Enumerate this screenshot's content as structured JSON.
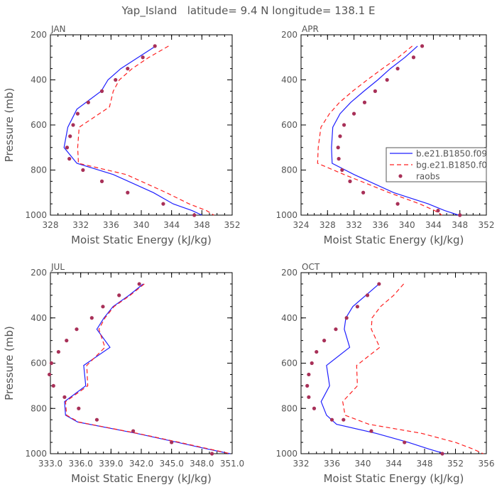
{
  "figure_title": "Yap_Island   latitude= 9.4 N longitude= 138.1 E",
  "legend": {
    "placement": "right, inside APR panel",
    "entries": [
      {
        "label": "b.e21.B1850.f09",
        "color": "#1f1fff",
        "style": "solid"
      },
      {
        "label": "bg.e21.B1850.f0",
        "color": "#ff2020",
        "style": "dashed"
      },
      {
        "label": "raobs",
        "color": "#a83058",
        "style": "dot"
      }
    ]
  },
  "chart_data": [
    {
      "type": "line",
      "title": "JAN",
      "xlabel": "Moist Static Energy (kJ/kg)",
      "ylabel": "Pressure (mb)",
      "xlim": [
        328,
        352
      ],
      "ylim": [
        1000,
        200
      ],
      "xticks": [
        328,
        332,
        336,
        340,
        344,
        348,
        352
      ],
      "xtick_labels": [
        "328",
        "332",
        "336",
        "340",
        "344",
        "348",
        "352"
      ],
      "yticks": [
        200,
        400,
        600,
        800,
        1000
      ],
      "ytick_labels": [
        "200",
        "400",
        "600",
        "800",
        "1000"
      ],
      "series": [
        {
          "name": "b.e21.B1850.f09",
          "color": "#1f1fff",
          "dash": "",
          "x": [
            341.9,
            339.6,
            337.3,
            335.6,
            334.7,
            331.5,
            330.3,
            329.8,
            331.5,
            336.3,
            341.6,
            344.2,
            346.7,
            348.0
          ],
          "y": [
            250,
            300,
            350,
            400,
            450,
            530,
            610,
            700,
            770,
            820,
            900,
            950,
            980,
            1000
          ]
        },
        {
          "name": "bg.e21.B1850.f0",
          "color": "#ff2020",
          "dash": "6,4",
          "x": [
            343.6,
            341.0,
            338.8,
            337.1,
            336.3,
            335.8,
            331.8,
            331.6,
            331.7,
            338.0,
            343.3,
            346.3,
            348.6,
            349.6
          ],
          "y": [
            250,
            300,
            350,
            400,
            450,
            520,
            610,
            700,
            770,
            820,
            900,
            950,
            980,
            1000
          ]
        }
      ],
      "points": {
        "name": "raobs",
        "color": "#a83058",
        "x": [
          341.8,
          340.2,
          338.2,
          336.6,
          334.8,
          333.0,
          331.6,
          331.0,
          330.6,
          330.2,
          330.5,
          332.3,
          334.8,
          338.2,
          342.9,
          347.0
        ],
        "y": [
          250,
          300,
          350,
          400,
          450,
          500,
          550,
          600,
          650,
          700,
          750,
          800,
          850,
          900,
          950,
          1000
        ]
      }
    },
    {
      "type": "line",
      "title": "APR",
      "xlabel": "Moist Static Energy (kJ/kg)",
      "ylabel": "",
      "xlim": [
        324,
        352
      ],
      "ylim": [
        1000,
        200
      ],
      "xticks": [
        324,
        328,
        332,
        336,
        340,
        344,
        348,
        352
      ],
      "xtick_labels": [
        "324",
        "328",
        "332",
        "336",
        "340",
        "344",
        "348",
        "352"
      ],
      "yticks": [
        200,
        400,
        600,
        800,
        1000
      ],
      "ytick_labels": [
        "200",
        "400",
        "600",
        "800",
        "1000"
      ],
      "series": [
        {
          "name": "b.e21.B1850.f09",
          "color": "#1f1fff",
          "dash": "",
          "x": [
            341.6,
            339.7,
            337.5,
            335.6,
            333.5,
            331.5,
            329.9,
            328.8,
            328.6,
            328.7,
            332.0,
            338.0,
            343.2,
            345.7,
            347.8
          ],
          "y": [
            250,
            300,
            350,
            400,
            450,
            500,
            550,
            610,
            700,
            770,
            820,
            900,
            950,
            980,
            1000
          ]
        },
        {
          "name": "bg.e21.B1850.f0",
          "color": "#ff2020",
          "dash": "6,4",
          "x": [
            340.8,
            338.7,
            336.3,
            334.0,
            331.8,
            329.8,
            328.3,
            327.0,
            326.6,
            326.5,
            330.5,
            337.3,
            341.9,
            344.2,
            345.3
          ],
          "y": [
            250,
            300,
            350,
            400,
            450,
            500,
            550,
            610,
            700,
            770,
            820,
            900,
            950,
            980,
            1000
          ]
        }
      ],
      "points": {
        "name": "raobs",
        "color": "#a83058",
        "x": [
          342.3,
          341.0,
          338.6,
          337.0,
          335.2,
          333.6,
          332.0,
          330.5,
          329.9,
          329.6,
          329.7,
          330.2,
          331.4,
          333.4,
          338.6,
          344.7,
          348.0
        ],
        "y": [
          250,
          300,
          350,
          400,
          450,
          500,
          550,
          600,
          650,
          700,
          750,
          800,
          850,
          900,
          950,
          980,
          1000
        ]
      }
    },
    {
      "type": "line",
      "title": "JUL",
      "xlabel": "Moist Static Energy (kJ/kg)",
      "ylabel": "Pressure (mb)",
      "xlim": [
        333,
        351
      ],
      "ylim": [
        1000,
        200
      ],
      "xticks": [
        333,
        336,
        339,
        342,
        345,
        348,
        351
      ],
      "xtick_labels": [
        "333.0",
        "336.0",
        "339.0",
        "342.0",
        "345.0",
        "348.0",
        "351.0"
      ],
      "yticks": [
        200,
        400,
        600,
        800,
        1000
      ],
      "ytick_labels": [
        "200",
        "400",
        "600",
        "800",
        "1000"
      ],
      "series": [
        {
          "name": "b.e21.B1850.f09",
          "color": "#1f1fff",
          "dash": "",
          "x": [
            342.2,
            340.8,
            339.2,
            338.3,
            337.6,
            338.9,
            336.3,
            336.5,
            334.4,
            334.5,
            335.7,
            341.5,
            345.6,
            348.6,
            350.8
          ],
          "y": [
            250,
            300,
            350,
            400,
            450,
            530,
            610,
            700,
            770,
            830,
            860,
            910,
            950,
            980,
            1000
          ]
        },
        {
          "name": "bg.e21.B1850.f0",
          "color": "#ff2020",
          "dash": "6,4",
          "x": [
            342.3,
            340.9,
            339.3,
            338.4,
            337.8,
            338.4,
            336.6,
            336.7,
            334.5,
            334.6,
            335.8,
            341.6,
            345.8,
            348.8,
            350.8
          ],
          "y": [
            250,
            300,
            350,
            400,
            450,
            530,
            610,
            700,
            770,
            830,
            860,
            910,
            950,
            980,
            1000
          ]
        }
      ],
      "points": {
        "name": "raobs",
        "color": "#a83058",
        "x": [
          341.8,
          339.8,
          338.2,
          337.1,
          335.6,
          334.6,
          333.8,
          333.1,
          332.9,
          333.3,
          334.4,
          335.8,
          337.6,
          341.2,
          345.0,
          349.0
        ],
        "y": [
          250,
          300,
          350,
          400,
          450,
          500,
          550,
          600,
          650,
          700,
          750,
          800,
          850,
          900,
          950,
          1000
        ]
      }
    },
    {
      "type": "line",
      "title": "OCT",
      "xlabel": "Moist Static Energy (kJ/kg)",
      "ylabel": "",
      "xlim": [
        332,
        356
      ],
      "ylim": [
        1000,
        200
      ],
      "xticks": [
        332,
        336,
        340,
        344,
        348,
        352,
        356
      ],
      "xtick_labels": [
        "332",
        "336",
        "340",
        "344",
        "348",
        "352",
        "356"
      ],
      "yticks": [
        200,
        400,
        600,
        800,
        1000
      ],
      "ytick_labels": [
        "200",
        "400",
        "600",
        "800",
        "1000"
      ],
      "series": [
        {
          "name": "b.e21.B1850.f09",
          "color": "#1f1fff",
          "dash": "",
          "x": [
            342.1,
            340.4,
            338.7,
            337.8,
            337.6,
            338.3,
            335.3,
            335.7,
            334.6,
            335.3,
            336.6,
            341.7,
            345.9,
            348.6,
            350.6
          ],
          "y": [
            250,
            300,
            350,
            400,
            450,
            530,
            610,
            700,
            770,
            830,
            870,
            910,
            950,
            980,
            1000
          ]
        },
        {
          "name": "bg.e21.B1850.f0",
          "color": "#ff2020",
          "dash": "6,4",
          "x": [
            345.3,
            344.0,
            342.3,
            341.2,
            341.1,
            342.2,
            339.2,
            339.3,
            337.4,
            337.7,
            340.8,
            347.6,
            352.0,
            354.3,
            355.6
          ],
          "y": [
            250,
            300,
            350,
            400,
            450,
            530,
            610,
            700,
            770,
            830,
            870,
            910,
            950,
            980,
            1000
          ]
        }
      ],
      "points": {
        "name": "raobs",
        "color": "#a83058",
        "x": [
          342.1,
          340.6,
          339.3,
          337.9,
          336.5,
          335.0,
          334.0,
          333.4,
          333.0,
          332.8,
          333.0,
          333.7,
          336.0,
          337.5,
          341.1,
          345.4,
          350.3
        ],
        "y": [
          250,
          300,
          350,
          400,
          450,
          500,
          550,
          600,
          650,
          700,
          750,
          800,
          850,
          850,
          900,
          950,
          1000
        ]
      }
    }
  ]
}
